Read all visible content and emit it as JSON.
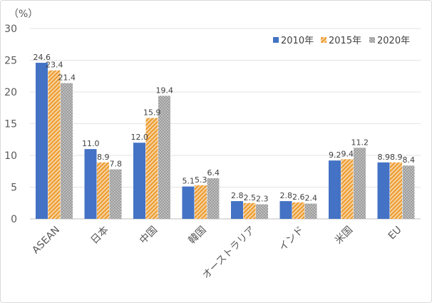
{
  "chart_data": {
    "type": "bar",
    "unit_label": "（%）",
    "categories": [
      "ASEAN",
      "日本",
      "中国",
      "韓国",
      "オーストラリア",
      "インド",
      "米国",
      "EU"
    ],
    "series": [
      {
        "name": "2010年",
        "values": [
          24.6,
          11.0,
          12.0,
          5.1,
          2.8,
          2.8,
          9.2,
          8.9
        ],
        "labels": [
          "24.6",
          "11.0",
          "12.0",
          "5.1",
          "2.8",
          "2.8",
          "9.2",
          "8.9"
        ],
        "color": "#4472c4",
        "pattern": "solid"
      },
      {
        "name": "2015年",
        "values": [
          23.4,
          8.9,
          15.9,
          5.3,
          2.5,
          2.6,
          9.4,
          8.9
        ],
        "labels": [
          "23.4",
          "8.9",
          "15.9",
          "5.3",
          "2.5",
          "2.6",
          "9.4",
          "8.9"
        ],
        "color": "#ed9a2b",
        "pattern": "diagonal-stripes"
      },
      {
        "name": "2020年",
        "values": [
          21.4,
          7.8,
          19.4,
          6.4,
          2.3,
          2.4,
          11.2,
          8.4
        ],
        "labels": [
          "21.4",
          "7.8",
          "19.4",
          "6.4",
          "2.3",
          "2.4",
          "11.2",
          "8.4"
        ],
        "color": "#a5a5a5",
        "pattern": "dots"
      }
    ],
    "yticks": [
      "0",
      "5",
      "10",
      "15",
      "20",
      "25",
      "30"
    ],
    "ylim": [
      0,
      30
    ],
    "grid": true,
    "legend_position": "top-right"
  }
}
